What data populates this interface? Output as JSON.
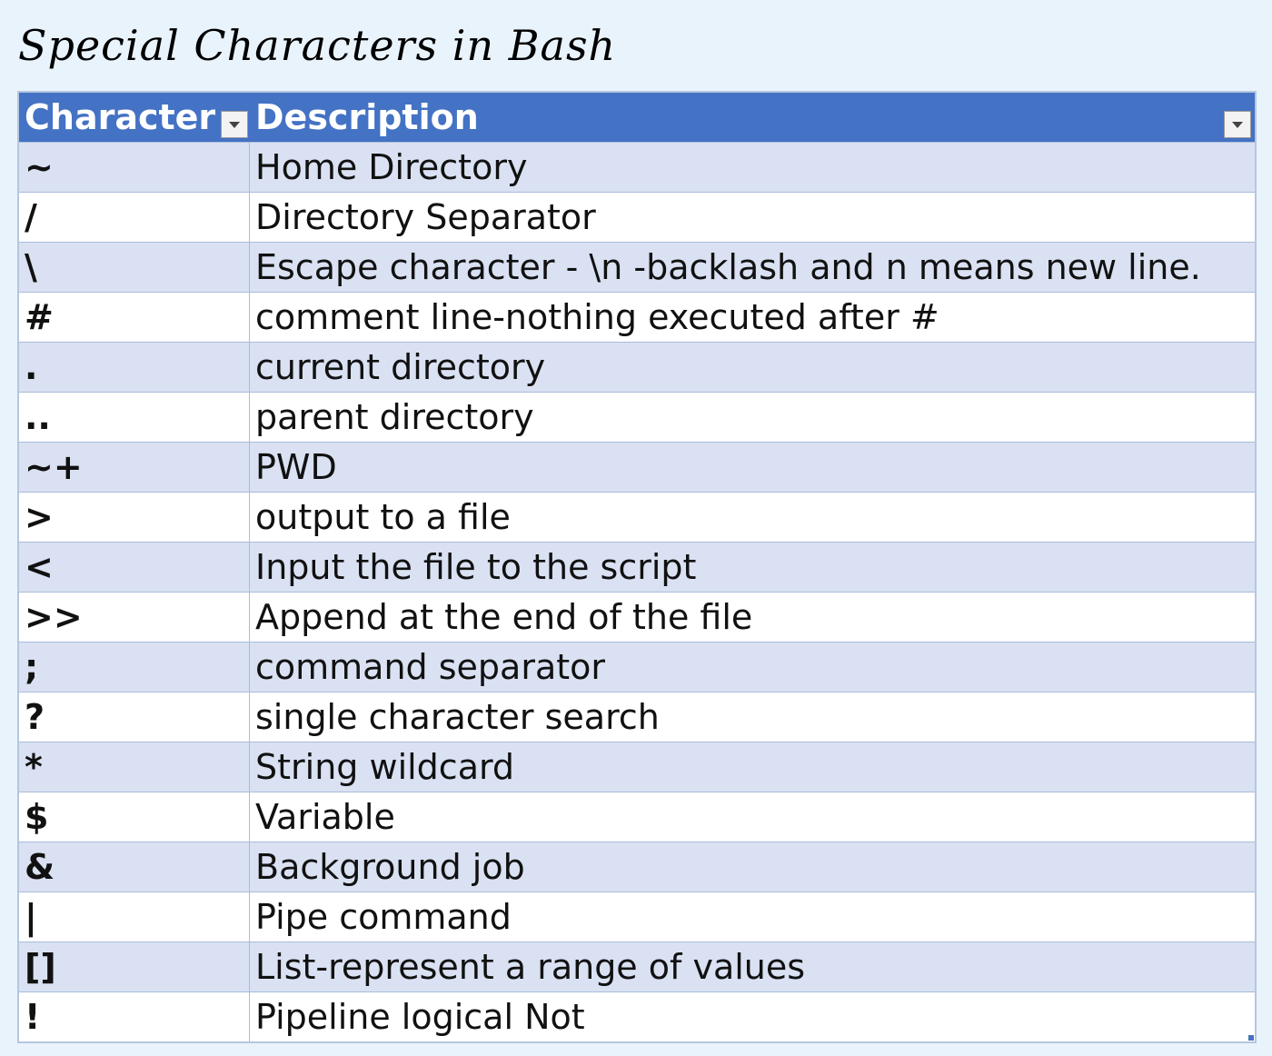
{
  "title": "Special Characters in Bash",
  "table": {
    "headers": {
      "character": "Character",
      "description": "Description"
    },
    "rows": [
      {
        "character": "~",
        "description": "Home Directory"
      },
      {
        "character": "/",
        "description": "Directory Separator"
      },
      {
        "character": "\\",
        "description": "Escape character - \\n -backlash and n means new line."
      },
      {
        "character": "#",
        "description": "comment line-nothing executed after #"
      },
      {
        "character": ".",
        "description": "current directory"
      },
      {
        "character": "..",
        "description": "parent directory"
      },
      {
        "character": "~+",
        "description": "PWD"
      },
      {
        "character": ">",
        "description": "output to a file"
      },
      {
        "character": "<",
        "description": "Input the file to the script"
      },
      {
        "character": ">>",
        "description": "Append at the end of the file"
      },
      {
        "character": ";",
        "description": "command separator"
      },
      {
        "character": "?",
        "description": "single character search"
      },
      {
        "character": "*",
        "description": "String wildcard"
      },
      {
        "character": "$",
        "description": "Variable"
      },
      {
        "character": "&",
        "description": "Background job"
      },
      {
        "character": "|",
        "description": "Pipe command"
      },
      {
        "character": "[]",
        "description": "List-represent a range of values"
      },
      {
        "character": "!",
        "description": "Pipeline logical Not"
      }
    ]
  },
  "colors": {
    "header_bg": "#4472c4",
    "band_row": "#d9e1f2",
    "plain_row": "#ffffff",
    "page_bg": "#e9f3fc"
  },
  "icons": {
    "filter": "dropdown-filter-icon"
  }
}
